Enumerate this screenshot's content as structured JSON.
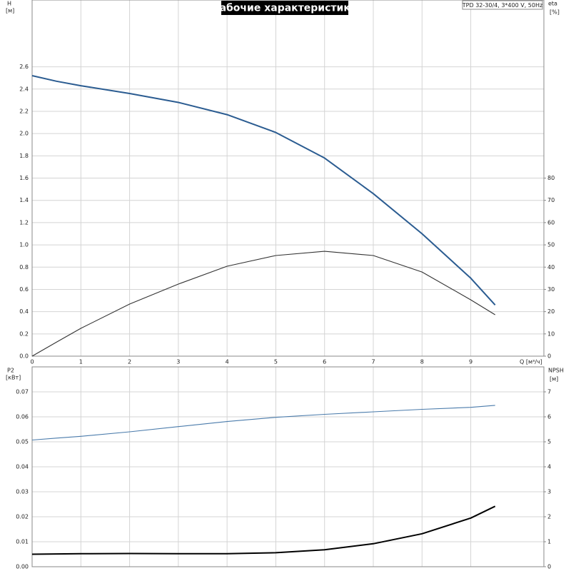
{
  "chart_data": [
    {
      "type": "line",
      "title": "Рабочие характеристики",
      "subtitle": "TPD 32-30/4, 3*400 V, 50Hz",
      "ylabel": "H",
      "yunit": "[м]",
      "y2label": "eta",
      "y2unit": "[%]",
      "xlabel": "Q [м³/ч]",
      "x": [
        0,
        0.5,
        1,
        2,
        3,
        4,
        5,
        6,
        7,
        8,
        9,
        9.5
      ],
      "xlim": [
        0,
        10.5
      ],
      "xticks": [
        0,
        1,
        2,
        3,
        4,
        5,
        6,
        7,
        8,
        9
      ],
      "ylim": [
        0,
        3.2
      ],
      "yticks": [
        {
          "value": 0,
          "label": "0.0"
        },
        0.2,
        0.4,
        0.6,
        0.8,
        {
          "value": 1,
          "label": "1.0"
        },
        1.2,
        1.4,
        1.6,
        1.8,
        {
          "value": 2,
          "label": "2.0"
        },
        2.2,
        2.4,
        2.6
      ],
      "y2lim": [
        0,
        160
      ],
      "y2ticks": [
        0,
        10,
        20,
        30,
        40,
        50,
        60,
        70,
        80
      ],
      "grid": true,
      "series": [
        {
          "name": "H",
          "color": "#2b5c91",
          "values": [
            2.52,
            2.47,
            2.43,
            2.36,
            2.28,
            2.17,
            2.01,
            1.78,
            1.46,
            1.1,
            0.7,
            0.46
          ]
        },
        {
          "name": "eta",
          "color": "#333333",
          "axis": "y2",
          "values": [
            0,
            6.3,
            12.5,
            23.4,
            32.4,
            40.4,
            45.2,
            47.1,
            45.2,
            37.8,
            25.3,
            18.6
          ]
        }
      ]
    },
    {
      "type": "line",
      "ylabel": "P2",
      "yunit": "[кВт]",
      "y2label": "NPSH",
      "y2unit": "[м]",
      "x": [
        0,
        0.5,
        1,
        2,
        3,
        4,
        5,
        6,
        7,
        8,
        9,
        9.5
      ],
      "xlim": [
        0,
        10.5
      ],
      "ylim": [
        0,
        0.08
      ],
      "yticks": [
        {
          "value": 0,
          "label": "0.00"
        },
        0.01,
        0.02,
        0.03,
        0.04,
        0.05,
        0.06,
        0.07
      ],
      "y2lim": [
        0,
        8
      ],
      "y2ticks": [
        0,
        1,
        2,
        3,
        4,
        5,
        6,
        7
      ],
      "grid": true,
      "series": [
        {
          "name": "P2",
          "color": "#4a7bab",
          "values": [
            0.0507,
            0.0515,
            0.0522,
            0.054,
            0.0561,
            0.0581,
            0.0598,
            0.061,
            0.062,
            0.063,
            0.0638,
            0.0646
          ]
        },
        {
          "name": "NPSH",
          "color": "#000000",
          "axis": "y2",
          "values": [
            0.5,
            0.51,
            0.52,
            0.53,
            0.52,
            0.52,
            0.56,
            0.68,
            0.92,
            1.32,
            1.95,
            2.42
          ]
        }
      ]
    }
  ]
}
